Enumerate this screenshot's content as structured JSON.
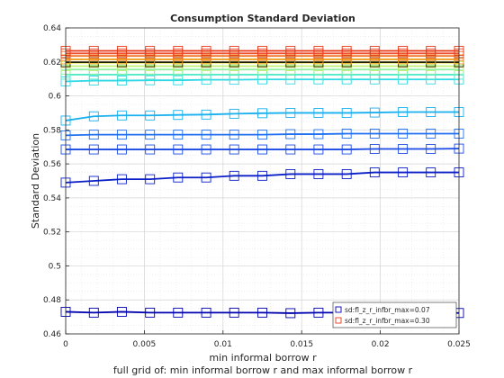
{
  "chart_data": {
    "type": "line",
    "title": "Consumption Standard Deviation",
    "xlabel": "min informal borrow r",
    "ylabel": "Standard Deviation",
    "footnote": "full grid of: min informal borrow r and max informal borrow r",
    "xlim": [
      0,
      0.025
    ],
    "ylim": [
      0.46,
      0.64
    ],
    "xticks": [
      0,
      0.005,
      0.01,
      0.015,
      0.02,
      0.025
    ],
    "xtick_labels": [
      "0",
      "0.005",
      "0.01",
      "0.015",
      "0.02",
      "0.025"
    ],
    "yticks": [
      0.46,
      0.48,
      0.5,
      0.52,
      0.54,
      0.56,
      0.58,
      0.6,
      0.62,
      0.64
    ],
    "ytick_labels": [
      "0.46",
      "0.48",
      "0.5",
      "0.52",
      "0.54",
      "0.56",
      "0.58",
      "0.6",
      "0.62",
      "0.64"
    ],
    "grid": true,
    "marker": "square",
    "legend_position": "bottom-right",
    "x": [
      0,
      0.00179,
      0.00357,
      0.00536,
      0.00714,
      0.00893,
      0.01071,
      0.0125,
      0.01429,
      0.01607,
      0.01786,
      0.01964,
      0.02143,
      0.02321,
      0.025
    ],
    "series": [
      {
        "name": "sd:fl_z_r_infbr_max=0.07",
        "color": "#0000b0",
        "values": [
          0.473,
          0.4725,
          0.473,
          0.4725,
          0.4725,
          0.4725,
          0.4725,
          0.4725,
          0.4722,
          0.4725,
          0.4725,
          0.4725,
          0.4725,
          0.4725,
          0.4723
        ]
      },
      {
        "color": "#0a1fc8",
        "values": [
          0.549,
          0.55,
          0.551,
          0.551,
          0.552,
          0.552,
          0.553,
          0.553,
          0.554,
          0.554,
          0.554,
          0.555,
          0.555,
          0.555,
          0.555
        ]
      },
      {
        "color": "#1a4ae6",
        "values": [
          0.5685,
          0.5685,
          0.5685,
          0.5685,
          0.5685,
          0.5685,
          0.5685,
          0.5685,
          0.5685,
          0.5685,
          0.5685,
          0.5688,
          0.5688,
          0.5688,
          0.569
        ]
      },
      {
        "color": "#1f6ff0",
        "values": [
          0.5768,
          0.5772,
          0.5772,
          0.5772,
          0.5772,
          0.5772,
          0.5772,
          0.5772,
          0.5775,
          0.5775,
          0.5778,
          0.5778,
          0.5778,
          0.5778,
          0.5778
        ]
      },
      {
        "color": "#18b0ee",
        "values": [
          0.5855,
          0.588,
          0.5885,
          0.5885,
          0.5888,
          0.589,
          0.5895,
          0.5898,
          0.59,
          0.59,
          0.59,
          0.5902,
          0.5905,
          0.5905,
          0.5905
        ]
      },
      {
        "color": "#2fd8e6",
        "values": [
          0.6085,
          0.609,
          0.609,
          0.6092,
          0.6092,
          0.6095,
          0.6095,
          0.6097,
          0.6097,
          0.6097,
          0.6097,
          0.6097,
          0.6097,
          0.6097,
          0.6097
        ]
      },
      {
        "color": "#52eac8",
        "values": [
          0.6125,
          0.6125,
          0.6125,
          0.6125,
          0.6125,
          0.6125,
          0.6125,
          0.6125,
          0.6125,
          0.6125,
          0.6125,
          0.6125,
          0.6125,
          0.6125,
          0.6125
        ]
      },
      {
        "color": "#8ef0a0",
        "values": [
          0.6155,
          0.6155,
          0.6155,
          0.6155,
          0.6155,
          0.6155,
          0.6155,
          0.6155,
          0.6155,
          0.6155,
          0.6155,
          0.6155,
          0.6155,
          0.6155,
          0.6155
        ]
      },
      {
        "color": "#c0f070",
        "values": [
          0.6175,
          0.6175,
          0.6175,
          0.6175,
          0.6175,
          0.6175,
          0.6175,
          0.6175,
          0.6175,
          0.6175,
          0.6175,
          0.6175,
          0.6175,
          0.6175,
          0.6175
        ]
      },
      {
        "color": "#e8e050",
        "values": [
          0.6195,
          0.6195,
          0.6195,
          0.6195,
          0.6195,
          0.6195,
          0.6195,
          0.6195,
          0.6195,
          0.6195,
          0.6195,
          0.6195,
          0.6195,
          0.6195,
          0.6195
        ]
      },
      {
        "color": "#202000",
        "values": [
          0.6198,
          0.6198,
          0.6198,
          0.6198,
          0.6198,
          0.6198,
          0.6198,
          0.6198,
          0.6198,
          0.6198,
          0.6198,
          0.6198,
          0.6198,
          0.6198,
          0.6198
        ]
      },
      {
        "color": "#f0a020",
        "values": [
          0.6215,
          0.6215,
          0.6215,
          0.6215,
          0.6215,
          0.6215,
          0.6215,
          0.6215,
          0.6215,
          0.6215,
          0.6215,
          0.6215,
          0.6215,
          0.6215,
          0.6215
        ]
      },
      {
        "color": "#f07828",
        "values": [
          0.6235,
          0.6235,
          0.6235,
          0.6235,
          0.6235,
          0.6235,
          0.6235,
          0.6235,
          0.6235,
          0.6235,
          0.6235,
          0.6235,
          0.6235,
          0.6235,
          0.6235
        ]
      },
      {
        "color": "#ee5030",
        "values": [
          0.625,
          0.625,
          0.625,
          0.625,
          0.625,
          0.625,
          0.625,
          0.625,
          0.625,
          0.625,
          0.625,
          0.625,
          0.625,
          0.625,
          0.625
        ]
      },
      {
        "name": "sd:fl_z_r_infbr_max=0.30",
        "color": "#e83a1a",
        "values": [
          0.6265,
          0.6265,
          0.6265,
          0.6265,
          0.6265,
          0.6265,
          0.6265,
          0.6265,
          0.6265,
          0.6265,
          0.6265,
          0.6265,
          0.6265,
          0.6265,
          0.6265
        ]
      }
    ]
  }
}
